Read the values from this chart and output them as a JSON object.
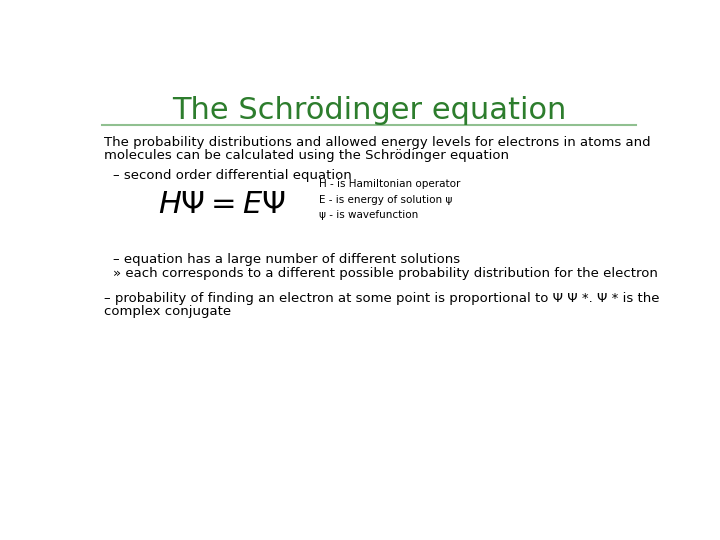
{
  "title": "The Schrödinger equation",
  "title_color": "#2d7d2d",
  "title_fontsize": 22,
  "bg_color": "#ffffff",
  "line_color": "#90c090",
  "body_text_color": "#000000",
  "body_fontsize": 9.5,
  "body_font": "DejaVu Sans",
  "paragraph1_line1": "The probability distributions and allowed energy levels for electrons in atoms and",
  "paragraph1_line2": "molecules can be calculated using the Schrödinger equation",
  "bullet1": "– second order differential equation",
  "equation_notes": "H - is Hamiltonian operator\nE - is energy of solution ψ\nψ - is wavefunction",
  "bullet2a": "– equation has a large number of different solutions",
  "bullet2b": "» each corresponds to a different possible probability distribution for the electron",
  "bullet3_line1": "– probability of finding an electron at some point is proportional to Ψ Ψ *. Ψ * is the",
  "bullet3_line2": "complex conjugate"
}
